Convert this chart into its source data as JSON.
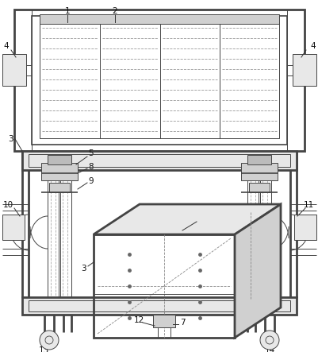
{
  "background": "#ffffff",
  "line_color": "#444444",
  "lw_thick": 2.0,
  "lw_med": 1.2,
  "lw_thin": 0.7,
  "lw_dash": 0.6,
  "font_size": 7.5,
  "label_color": "#111111",
  "fill_light": "#e8e8e8",
  "fill_mid": "#d0d0d0",
  "fill_dark": "#bbbbbb"
}
